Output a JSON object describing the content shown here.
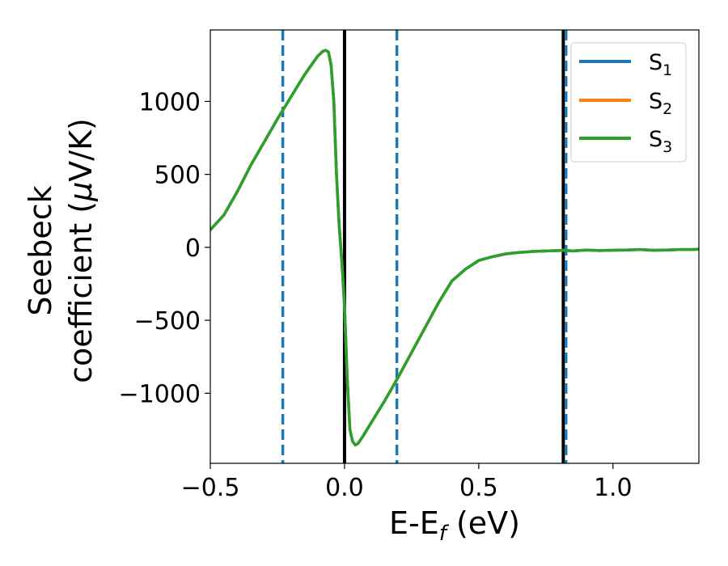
{
  "chart_data": {
    "type": "line",
    "xlabel": "E-E",
    "xlabel_sub": "f",
    "xlabel_unit": " (eV)",
    "ylabel_line1": "Seebeck",
    "ylabel_line2": "coefficient  (",
    "ylabel_mu": "μ",
    "ylabel_unit": "V/K)",
    "xlim": [
      -0.5,
      1.32
    ],
    "ylim": [
      -1480,
      1490
    ],
    "x_ticks": [
      -0.5,
      0.0,
      0.5,
      1.0
    ],
    "x_tick_labels": [
      "−0.5",
      "0.0",
      "0.5",
      "1.0"
    ],
    "y_ticks": [
      1000,
      500,
      0,
      -500,
      -1000
    ],
    "y_tick_labels": [
      "1000",
      "500",
      "0",
      "−500",
      "−1000"
    ],
    "grid": false,
    "legend_position": "top-right",
    "vlines": [
      {
        "x": 0.0,
        "style": "solid",
        "color": "#000000"
      },
      {
        "x": 0.815,
        "style": "solid",
        "color": "#000000"
      },
      {
        "x": -0.23,
        "style": "dashed",
        "color": "#1f77b4"
      },
      {
        "x": 0.195,
        "style": "dashed",
        "color": "#1f77b4"
      },
      {
        "x": 0.825,
        "style": "dashed",
        "color": "#1f77b4"
      }
    ],
    "x": [
      -0.5,
      -0.45,
      -0.4,
      -0.35,
      -0.3,
      -0.25,
      -0.2,
      -0.15,
      -0.1,
      -0.08,
      -0.07,
      -0.06,
      -0.05,
      -0.04,
      -0.03,
      -0.02,
      -0.01,
      0.0,
      0.01,
      0.02,
      0.03,
      0.04,
      0.05,
      0.07,
      0.1,
      0.15,
      0.2,
      0.25,
      0.3,
      0.35,
      0.4,
      0.45,
      0.5,
      0.55,
      0.6,
      0.65,
      0.7,
      0.75,
      0.8,
      0.82,
      0.85,
      0.9,
      0.95,
      1.0,
      1.05,
      1.1,
      1.15,
      1.2,
      1.25,
      1.3,
      1.32
    ],
    "series": [
      {
        "name": "S",
        "sub": "1",
        "color": "#1f77b4",
        "values": [
          120,
          220,
          380,
          560,
          720,
          880,
          1030,
          1180,
          1310,
          1345,
          1350,
          1340,
          1250,
          1000,
          500,
          150,
          -100,
          -400,
          -900,
          -1250,
          -1330,
          -1355,
          -1345,
          -1290,
          -1200,
          -1050,
          -890,
          -720,
          -550,
          -380,
          -230,
          -150,
          -90,
          -65,
          -45,
          -35,
          -28,
          -25,
          -22,
          -20,
          -25,
          -18,
          -22,
          -20,
          -18,
          -15,
          -20,
          -18,
          -15,
          -15,
          -12
        ]
      },
      {
        "name": "S",
        "sub": "2",
        "color": "#ff7f0e",
        "values": [
          120,
          220,
          380,
          560,
          720,
          880,
          1030,
          1180,
          1310,
          1345,
          1350,
          1340,
          1250,
          1000,
          500,
          150,
          -100,
          -400,
          -900,
          -1250,
          -1330,
          -1355,
          -1345,
          -1290,
          -1200,
          -1050,
          -890,
          -720,
          -550,
          -380,
          -230,
          -150,
          -90,
          -65,
          -45,
          -35,
          -28,
          -25,
          -22,
          -20,
          -25,
          -18,
          -22,
          -20,
          -18,
          -15,
          -20,
          -18,
          -15,
          -15,
          -12
        ]
      },
      {
        "name": "S",
        "sub": "3",
        "color": "#2ca02c",
        "values": [
          120,
          220,
          380,
          560,
          720,
          880,
          1030,
          1180,
          1310,
          1345,
          1350,
          1340,
          1250,
          1000,
          500,
          150,
          -100,
          -400,
          -900,
          -1250,
          -1330,
          -1355,
          -1345,
          -1290,
          -1200,
          -1050,
          -890,
          -720,
          -550,
          -380,
          -230,
          -150,
          -90,
          -65,
          -45,
          -35,
          -28,
          -25,
          -22,
          -20,
          -25,
          -18,
          -22,
          -20,
          -18,
          -15,
          -20,
          -18,
          -15,
          -15,
          -12
        ]
      }
    ]
  }
}
